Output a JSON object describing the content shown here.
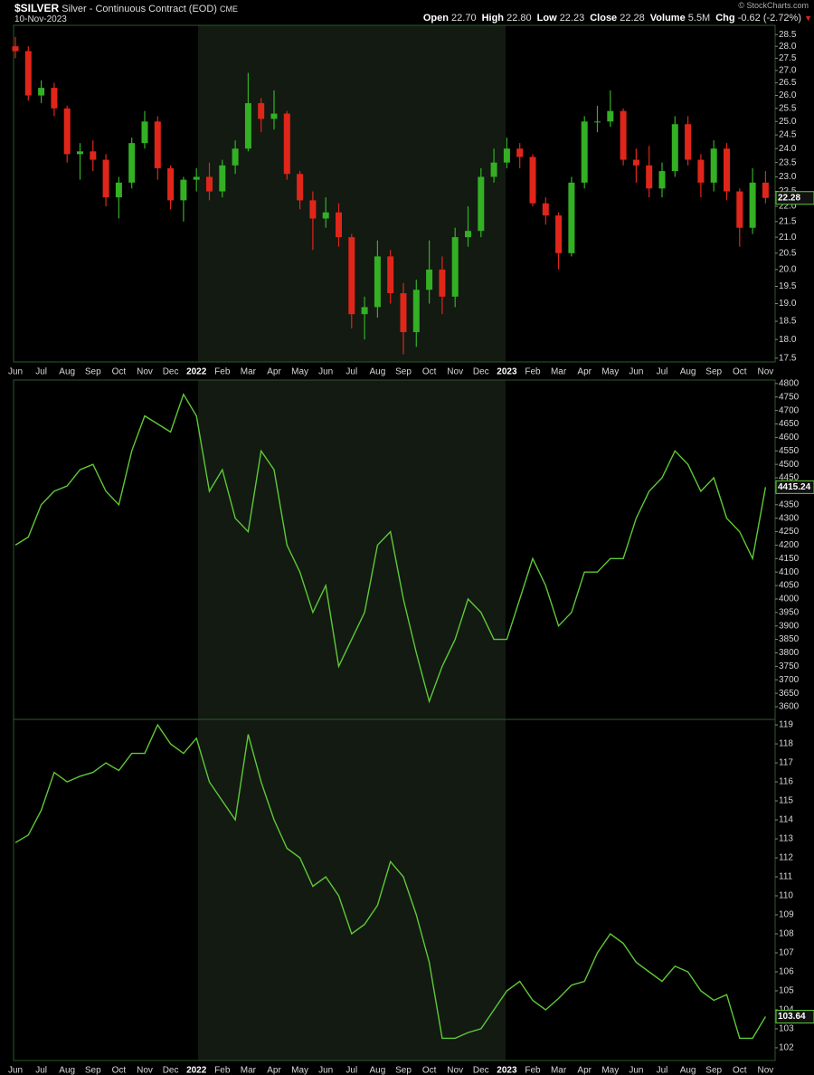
{
  "credit": "© StockCharts.com",
  "chart_data": [
    {
      "type": "candlestick",
      "title": "$SILVER",
      "subtitle": "Silver - Continuous Contract (EOD)",
      "exchange": "CME",
      "date": "10-Nov-2023",
      "quote": [
        {
          "label": "Open",
          "value": "22.70"
        },
        {
          "label": "High",
          "value": "22.80"
        },
        {
          "label": "Low",
          "value": "22.23"
        },
        {
          "label": "Close",
          "value": "22.28"
        },
        {
          "label": "Volume",
          "value": "5.5M"
        },
        {
          "label": "Chg",
          "value": "-0.62 (-2.72%)"
        }
      ],
      "categories": [
        "Jun",
        null,
        "Jul",
        null,
        "Aug",
        null,
        "Sep",
        null,
        "Oct",
        null,
        "Nov",
        null,
        "Dec",
        null,
        "2022",
        null,
        "Feb",
        null,
        "Mar",
        null,
        "Apr",
        null,
        "May",
        null,
        "Jun",
        null,
        "Jul",
        null,
        "Aug",
        null,
        "Sep",
        null,
        "Oct",
        null,
        "Nov",
        null,
        "Dec",
        null,
        "2023",
        null,
        "Feb",
        null,
        "Mar",
        null,
        "Apr",
        null,
        "May",
        null,
        "Jun",
        null,
        "Jul",
        null,
        "Aug",
        null,
        "Sep",
        null,
        "Oct",
        null,
        "Nov"
      ],
      "open": [
        28.0,
        27.8,
        26.0,
        26.3,
        25.5,
        23.8,
        23.9,
        23.6,
        22.3,
        22.8,
        24.2,
        25.0,
        23.3,
        22.2,
        22.9,
        23.0,
        22.5,
        23.4,
        24.0,
        25.7,
        25.1,
        25.3,
        23.1,
        22.2,
        21.6,
        21.8,
        21.0,
        18.7,
        18.9,
        20.4,
        19.3,
        18.2,
        19.4,
        20.0,
        19.2,
        21.0,
        21.2,
        23.0,
        23.5,
        24.0,
        23.7,
        22.1,
        21.7,
        20.5,
        22.8,
        25.0,
        25.0,
        25.4,
        23.6,
        23.4,
        22.6,
        23.2,
        24.9,
        23.6,
        22.8,
        24.0,
        22.5,
        21.3,
        22.8
      ],
      "high": [
        28.4,
        28.0,
        26.6,
        26.5,
        25.6,
        24.2,
        24.3,
        23.8,
        23.0,
        24.4,
        25.4,
        25.2,
        23.4,
        23.0,
        23.3,
        23.5,
        23.6,
        24.3,
        26.9,
        25.9,
        26.2,
        25.4,
        23.2,
        22.5,
        22.3,
        22.1,
        21.1,
        19.2,
        20.9,
        20.6,
        19.6,
        19.7,
        20.9,
        20.4,
        21.3,
        22.0,
        23.3,
        24.0,
        24.4,
        24.2,
        23.8,
        22.3,
        21.8,
        23.0,
        25.2,
        25.6,
        26.2,
        25.5,
        24.0,
        24.1,
        23.5,
        25.2,
        25.2,
        23.8,
        24.3,
        24.2,
        22.6,
        23.3,
        23.2
      ],
      "low": [
        27.5,
        25.8,
        25.7,
        25.2,
        23.5,
        22.9,
        23.2,
        22.0,
        21.6,
        22.6,
        24.0,
        22.9,
        21.9,
        21.5,
        22.5,
        22.2,
        22.3,
        23.1,
        23.9,
        24.6,
        24.7,
        22.9,
        21.9,
        20.6,
        21.3,
        20.7,
        18.3,
        18.0,
        18.6,
        19.0,
        17.6,
        17.8,
        19.0,
        18.7,
        18.9,
        20.7,
        21.0,
        22.8,
        23.3,
        23.3,
        22.0,
        21.4,
        20.0,
        20.4,
        22.6,
        24.6,
        24.8,
        23.4,
        22.8,
        22.3,
        22.3,
        23.0,
        23.4,
        22.3,
        22.5,
        22.2,
        20.7,
        21.1,
        22.1
      ],
      "close": [
        27.8,
        26.0,
        26.3,
        25.5,
        23.8,
        23.9,
        23.6,
        22.3,
        22.8,
        24.2,
        25.0,
        23.3,
        22.2,
        22.9,
        23.0,
        22.5,
        23.4,
        24.0,
        25.7,
        25.1,
        25.3,
        23.1,
        22.2,
        21.6,
        21.8,
        21.0,
        18.7,
        18.9,
        20.4,
        19.3,
        18.2,
        19.4,
        20.0,
        19.2,
        21.0,
        21.2,
        23.0,
        23.5,
        24.0,
        23.7,
        22.1,
        21.7,
        20.5,
        22.8,
        25.0,
        25.0,
        25.4,
        23.6,
        23.4,
        22.6,
        23.2,
        24.9,
        23.6,
        22.8,
        24.0,
        22.5,
        21.3,
        22.8,
        22.28
      ],
      "up_color": "#33b024",
      "down_color": "#e0261a",
      "log_scale": true,
      "ylim": [
        17.4,
        28.9
      ],
      "yticks": [
        17.5,
        {
          "value": 18,
          "label": "18.0"
        },
        18.5,
        {
          "value": 19,
          "label": "19.0"
        },
        19.5,
        {
          "value": 20,
          "label": "20.0"
        },
        20.5,
        {
          "value": 21,
          "label": "21.0"
        },
        21.5,
        {
          "value": 22,
          "label": "22.0"
        },
        22.5,
        {
          "value": 23,
          "label": "23.0"
        },
        23.5,
        {
          "value": 24,
          "label": "24.0"
        },
        24.5,
        {
          "value": 25,
          "label": "25.0"
        },
        25.5,
        {
          "value": 26,
          "label": "26.0"
        },
        26.5,
        {
          "value": 27,
          "label": "27.0"
        },
        27.5,
        {
          "value": 28,
          "label": "28.0"
        },
        28.5
      ]
    },
    {
      "type": "line",
      "color": "#5fc836",
      "values": [
        4200,
        4230,
        4350,
        4400,
        4420,
        4480,
        4500,
        4400,
        4350,
        4550,
        4680,
        4650,
        4620,
        4760,
        4680,
        4400,
        4480,
        4300,
        4250,
        4550,
        4480,
        4200,
        4100,
        3950,
        4050,
        3750,
        3850,
        3950,
        4200,
        4250,
        4000,
        3800,
        3620,
        3750,
        3850,
        4000,
        3950,
        3850,
        3850,
        4000,
        4150,
        4050,
        3900,
        3950,
        4100,
        4100,
        4150,
        4150,
        4300,
        4400,
        4450,
        4550,
        4500,
        4400,
        4450,
        4300,
        4250,
        4150,
        4415.24
      ],
      "ylim": [
        3553,
        4813
      ],
      "yticks": [
        3600,
        3650,
        3700,
        3750,
        3800,
        3850,
        3900,
        3950,
        4000,
        4050,
        4100,
        4150,
        4200,
        4250,
        4300,
        4350,
        4400,
        4450,
        4500,
        4550,
        4600,
        4650,
        4700,
        4750,
        4800
      ]
    },
    {
      "type": "line",
      "color": "#5fc836",
      "categories": [
        "Jun",
        null,
        "Jul",
        null,
        "Aug",
        null,
        "Sep",
        null,
        "Oct",
        null,
        "Nov",
        null,
        "Dec",
        null,
        "2022",
        null,
        "Feb",
        null,
        "Mar",
        null,
        "Apr",
        null,
        "May",
        null,
        "Jun",
        null,
        "Jul",
        null,
        "Aug",
        null,
        "Sep",
        null,
        "Oct",
        null,
        "Nov",
        null,
        "Dec",
        null,
        "2023",
        null,
        "Feb",
        null,
        "Mar",
        null,
        "Apr",
        null,
        "May",
        null,
        "Jun",
        null,
        "Jul",
        null,
        "Aug",
        null,
        "Sep",
        null,
        "Oct",
        null,
        "Nov"
      ],
      "values": [
        112.8,
        113.2,
        114.5,
        116.5,
        116.0,
        116.3,
        116.5,
        117.0,
        116.6,
        117.5,
        117.5,
        119.0,
        118.0,
        117.5,
        118.3,
        116.0,
        115.0,
        114.0,
        118.5,
        116.0,
        114.0,
        112.5,
        112.0,
        110.5,
        111.0,
        110.0,
        108.0,
        108.5,
        109.5,
        111.8,
        111.0,
        109.0,
        106.5,
        102.5,
        102.5,
        102.8,
        103.0,
        104.0,
        105.0,
        105.5,
        104.5,
        104.0,
        104.6,
        105.3,
        105.5,
        107.0,
        108.0,
        107.5,
        106.5,
        106.0,
        105.5,
        106.3,
        106.0,
        105.0,
        104.5,
        104.8,
        102.5,
        102.5,
        103.64
      ],
      "ylim": [
        101.33,
        119.29
      ],
      "yticks": [
        102,
        103,
        104,
        105,
        106,
        107,
        108,
        109,
        110,
        111,
        112,
        113,
        114,
        115,
        116,
        117,
        118,
        119
      ]
    }
  ]
}
